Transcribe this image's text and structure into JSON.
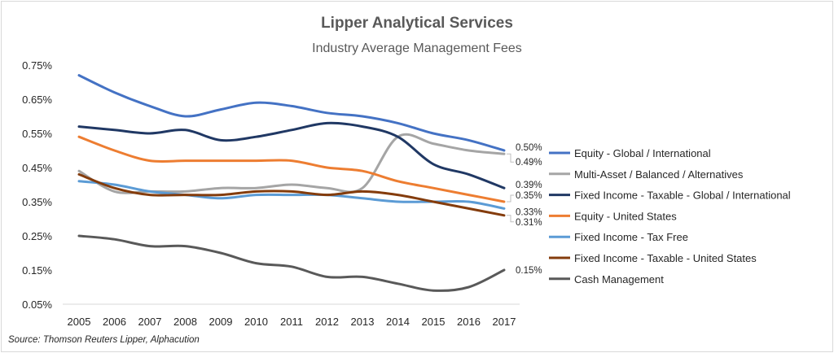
{
  "chart_data": {
    "type": "line",
    "title": "Lipper Analytical Services",
    "subtitle": "Industry Average Management Fees",
    "source": "Source: Thomson Reuters Lipper, Alphacution",
    "x": [
      "2005",
      "2006",
      "2007",
      "2008",
      "2009",
      "2010",
      "2011",
      "2012",
      "2013",
      "2014",
      "2015",
      "2016",
      "2017"
    ],
    "ylim": [
      0.05,
      0.75
    ],
    "yticks": [
      "0.05%",
      "0.15%",
      "0.25%",
      "0.35%",
      "0.45%",
      "0.55%",
      "0.65%",
      "0.75%"
    ],
    "ytick_values": [
      0.05,
      0.15,
      0.25,
      0.35,
      0.45,
      0.55,
      0.65,
      0.75
    ],
    "grid": false,
    "legend_position": "right",
    "series": [
      {
        "name": "Equity - Global / International",
        "color": "#4472c4",
        "values": [
          0.72,
          0.67,
          0.63,
          0.6,
          0.62,
          0.64,
          0.63,
          0.61,
          0.6,
          0.58,
          0.55,
          0.53,
          0.5
        ],
        "end_label": "0.50%"
      },
      {
        "name": "Multi-Asset / Balanced / Alternatives",
        "color": "#a5a5a5",
        "values": [
          0.44,
          0.38,
          0.38,
          0.38,
          0.39,
          0.39,
          0.4,
          0.39,
          0.39,
          0.54,
          0.52,
          0.5,
          0.49
        ],
        "end_label": "0.49%"
      },
      {
        "name": "Fixed Income - Taxable - Global / International",
        "color": "#203864",
        "values": [
          0.57,
          0.56,
          0.55,
          0.56,
          0.53,
          0.54,
          0.56,
          0.58,
          0.57,
          0.54,
          0.46,
          0.43,
          0.39
        ],
        "end_label": "0.39%"
      },
      {
        "name": "Equity - United States",
        "color": "#ed7d31",
        "values": [
          0.54,
          0.5,
          0.47,
          0.47,
          0.47,
          0.47,
          0.47,
          0.45,
          0.44,
          0.41,
          0.39,
          0.37,
          0.35
        ],
        "end_label": "0.35%"
      },
      {
        "name": "Fixed Income - Tax Free",
        "color": "#5b9bd5",
        "values": [
          0.41,
          0.4,
          0.38,
          0.37,
          0.36,
          0.37,
          0.37,
          0.37,
          0.36,
          0.35,
          0.35,
          0.35,
          0.33
        ],
        "end_label": "0.33%"
      },
      {
        "name": "Fixed Income - Taxable - United States",
        "color": "#843c0c",
        "values": [
          0.43,
          0.39,
          0.37,
          0.37,
          0.37,
          0.38,
          0.38,
          0.37,
          0.38,
          0.37,
          0.35,
          0.33,
          0.31
        ],
        "end_label": "0.31%"
      },
      {
        "name": "Cash Management",
        "color": "#595959",
        "values": [
          0.25,
          0.24,
          0.22,
          0.22,
          0.2,
          0.17,
          0.16,
          0.13,
          0.13,
          0.11,
          0.09,
          0.1,
          0.15
        ],
        "end_label": "0.15%"
      }
    ]
  }
}
